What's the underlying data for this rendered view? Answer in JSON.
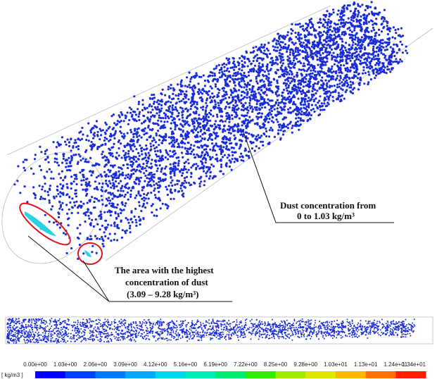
{
  "annotations": {
    "dust_range": {
      "line1": "Dust concentration from",
      "line2": "0 to 1.03 kg/m³"
    },
    "highest": {
      "line1": "The area with the highest",
      "line2": "concentration of dust",
      "line3": "(3.09 – 9.28 kg/m³)"
    }
  },
  "colorbar": {
    "unit": "[ kg/m3 ]",
    "labels": [
      "0.00e+00",
      "1.03e+00",
      "2.06e+00",
      "3.09e+00",
      "4.12e+00",
      "5.16e+00",
      "6.19e+00",
      "7.22e+00",
      "8.25e+00",
      "9.28e+00",
      "1.03e+01",
      "1.13e+01",
      "1.24e+01",
      "1.34e+01"
    ],
    "colors": [
      "#0000ff",
      "#0040ff",
      "#0078ff",
      "#00a8ff",
      "#00d8f0",
      "#00ecb8",
      "#00ec70",
      "#30ec00",
      "#a0ec00",
      "#e0e800",
      "#ffb800",
      "#ff7000",
      "#ff1e00"
    ]
  }
}
